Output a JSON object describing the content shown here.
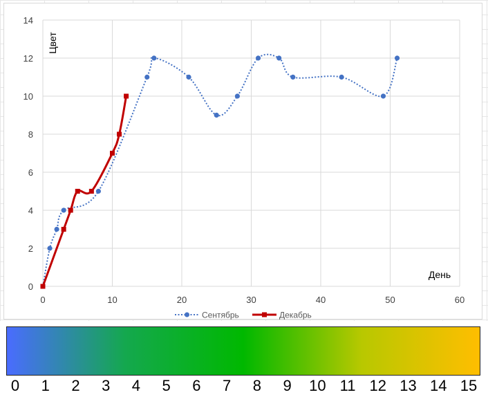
{
  "chart_data": {
    "type": "line",
    "xlabel": "День",
    "ylabel": "Цвет",
    "xlim": [
      0,
      60
    ],
    "ylim": [
      0,
      14
    ],
    "x_ticks": [
      0,
      10,
      20,
      30,
      40,
      50,
      60
    ],
    "y_ticks": [
      0,
      2,
      4,
      6,
      8,
      10,
      12,
      14
    ],
    "grid": true,
    "legend_position": "bottom",
    "series": [
      {
        "name": "Сентябрь",
        "color": "#4472C4",
        "line_style": "dotted",
        "marker": "circle",
        "x": [
          0,
          1,
          2,
          3,
          8,
          15,
          16,
          21,
          25,
          28,
          31,
          34,
          36,
          43,
          49,
          51
        ],
        "y": [
          0,
          2,
          3,
          4,
          5,
          11,
          12,
          11,
          9,
          10,
          12,
          12,
          11,
          11,
          10,
          12
        ]
      },
      {
        "name": "Декабрь",
        "color": "#C00000",
        "line_style": "solid",
        "marker": "square",
        "x": [
          0,
          3,
          4,
          5,
          7,
          10,
          11,
          12
        ],
        "y": [
          0,
          3,
          4,
          5,
          5,
          7,
          8,
          10
        ]
      }
    ]
  },
  "colorbar": {
    "colors": [
      "#4a6cff",
      "#14a84e",
      "#00b800",
      "#b8c800",
      "#ffbe00"
    ],
    "labels": [
      "0",
      "1",
      "2",
      "3",
      "4",
      "5",
      "6",
      "7",
      "8",
      "9",
      "10",
      "11",
      "12",
      "13",
      "14",
      "15"
    ]
  }
}
